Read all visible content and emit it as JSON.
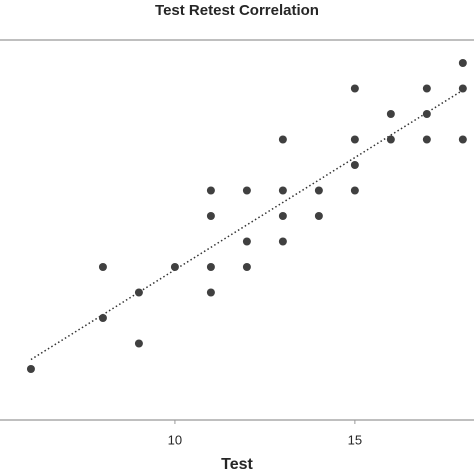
{
  "chart_data": {
    "type": "scatter",
    "title": "Test Retest Correlation",
    "x_label": "Test",
    "x": [
      6,
      8,
      8,
      9,
      9,
      10,
      11,
      11,
      11,
      11,
      12,
      12,
      12,
      13,
      13,
      13,
      13,
      14,
      14,
      15,
      15,
      15,
      15,
      16,
      16,
      17,
      17,
      17,
      18,
      18,
      18
    ],
    "values": [
      6,
      10,
      8,
      9,
      7,
      10,
      13,
      12,
      10,
      9,
      13,
      11,
      10,
      15,
      13,
      12,
      11,
      13,
      12,
      17,
      15,
      14,
      13,
      16,
      15,
      17,
      16,
      15,
      18,
      17,
      15
    ],
    "color": "#404040",
    "xlim": [
      5.14,
      18.31
    ],
    "ylim": [
      4,
      19
    ],
    "xticks": [
      10,
      15
    ],
    "trendline": true
  }
}
